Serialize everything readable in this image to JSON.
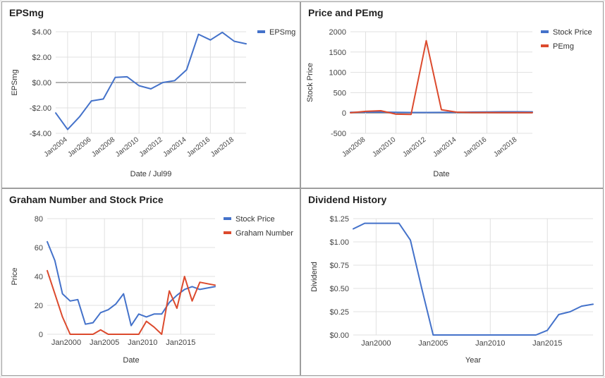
{
  "chart_data": [
    {
      "id": "eps",
      "type": "line",
      "title": "EPSmg",
      "xlabel": "Date / Jul99",
      "ylabel": "EPSmg",
      "ylim": [
        -4,
        4
      ],
      "xlim": [
        2003,
        2019
      ],
      "yticks": [
        4,
        2,
        0,
        -2,
        -4
      ],
      "ytick_labels": [
        "$4.00",
        "$2.00",
        "$0.00",
        "-$2.00",
        "-$4.00"
      ],
      "xticks": [
        2004,
        2006,
        2008,
        2010,
        2012,
        2014,
        2016,
        2018
      ],
      "xtick_labels": [
        "Jan2004",
        "Jan2006",
        "Jan2008",
        "Jan2010",
        "Jan2012",
        "Jan2014",
        "Jan2016",
        "Jan2018"
      ],
      "grid": true,
      "legend_position": "right",
      "series": [
        {
          "name": "EPSmg",
          "color": "#4472ca",
          "x": [
            2003,
            2004,
            2005,
            2006,
            2007,
            2008,
            2009,
            2010,
            2011,
            2012,
            2013,
            2014,
            2015,
            2016,
            2017,
            2018,
            2019
          ],
          "y": [
            -2.4,
            -3.7,
            -2.7,
            -1.45,
            -1.3,
            0.4,
            0.45,
            -0.25,
            -0.5,
            0.0,
            0.15,
            1.0,
            3.8,
            3.35,
            3.95,
            3.25,
            3.05
          ]
        }
      ]
    },
    {
      "id": "pe",
      "type": "line",
      "title": "Price and PEmg",
      "xlabel": "Date",
      "ylabel": "Stock Price",
      "ylim": [
        -500,
        2000
      ],
      "xlim": [
        2007,
        2019
      ],
      "yticks": [
        2000,
        1500,
        1000,
        500,
        0,
        -500
      ],
      "ytick_labels": [
        "2000",
        "1500",
        "1000",
        "500",
        "0",
        "-500"
      ],
      "xticks": [
        2008,
        2010,
        2012,
        2014,
        2016,
        2018
      ],
      "xtick_labels": [
        "Jan2008",
        "Jan2010",
        "Jan2012",
        "Jan2014",
        "Jan2016",
        "Jan2018"
      ],
      "grid": true,
      "legend_position": "right",
      "series": [
        {
          "name": "Stock Price",
          "color": "#4472ca",
          "x": [
            2007,
            2008,
            2009,
            2010,
            2011,
            2012,
            2013,
            2014,
            2015,
            2016,
            2017,
            2018,
            2019
          ],
          "y": [
            15,
            20,
            22,
            15,
            12,
            12,
            14,
            18,
            22,
            26,
            30,
            30,
            28
          ]
        },
        {
          "name": "PEmg",
          "color": "#dc4a2d",
          "x": [
            2007,
            2008,
            2009,
            2010,
            2011,
            2012,
            2013,
            2014,
            2015,
            2016,
            2017,
            2018,
            2019
          ],
          "y": [
            5,
            40,
            55,
            -30,
            -35,
            1780,
            80,
            20,
            10,
            10,
            8,
            9,
            8
          ]
        }
      ]
    },
    {
      "id": "graham",
      "type": "line",
      "title": "Graham Number and Stock Price",
      "xlabel": "Date",
      "ylabel": "Price",
      "ylim": [
        0,
        80
      ],
      "xlim": [
        1997.5,
        2019.5
      ],
      "yticks": [
        80,
        60,
        40,
        20,
        0
      ],
      "ytick_labels": [
        "80",
        "60",
        "40",
        "20",
        "0"
      ],
      "xticks": [
        2000,
        2005,
        2010,
        2015
      ],
      "xtick_labels": [
        "Jan2000",
        "Jan2005",
        "Jan2010",
        "Jan2015"
      ],
      "grid": true,
      "legend_position": "right",
      "series": [
        {
          "name": "Stock Price",
          "color": "#4472ca",
          "x": [
            1997.5,
            1998.5,
            1999.5,
            2000.5,
            2001.5,
            2002.5,
            2003.5,
            2004.5,
            2005.5,
            2006.5,
            2007.5,
            2008.5,
            2009.5,
            2010.5,
            2011.5,
            2012.5,
            2013.5,
            2014.5,
            2015.5,
            2016.5,
            2017.5,
            2018.5,
            2019.5
          ],
          "y": [
            64,
            51,
            28,
            23,
            24,
            7,
            8,
            15,
            17,
            21,
            28,
            6,
            14,
            12,
            14,
            14,
            22,
            27,
            31,
            33,
            31,
            32,
            33
          ]
        },
        {
          "name": "Graham Number",
          "color": "#dc4a2d",
          "x": [
            1997.5,
            1998.5,
            1999.5,
            2000.5,
            2001.5,
            2002.5,
            2003.5,
            2004.5,
            2005.5,
            2006.5,
            2007.5,
            2008.5,
            2009.5,
            2010.5,
            2011.5,
            2012.5,
            2013.5,
            2014.5,
            2015.5,
            2016.5,
            2017.5,
            2018.5,
            2019.5
          ],
          "y": [
            44,
            28,
            12,
            0,
            0,
            0,
            0,
            3,
            0,
            0,
            0,
            0,
            0,
            9,
            5,
            0,
            30,
            18,
            40,
            23,
            36,
            35,
            34
          ]
        }
      ]
    },
    {
      "id": "dividend",
      "type": "line",
      "title": "Dividend History",
      "xlabel": "Year",
      "ylabel": "Dividend",
      "ylim": [
        0,
        1.25
      ],
      "xlim": [
        1998,
        2019
      ],
      "yticks": [
        1.25,
        1.0,
        0.75,
        0.5,
        0.25,
        0.0
      ],
      "ytick_labels": [
        "$1.25",
        "$1.00",
        "$0.75",
        "$0.50",
        "$0.25",
        "$0.00"
      ],
      "xticks": [
        2000,
        2005,
        2010,
        2015
      ],
      "xtick_labels": [
        "Jan2000",
        "Jan2005",
        "Jan2010",
        "Jan2015"
      ],
      "grid": true,
      "series": [
        {
          "name": "",
          "color": "#4472ca",
          "x": [
            1998,
            1999,
            2000,
            2001,
            2002,
            2003,
            2004,
            2005,
            2006,
            2007,
            2008,
            2009,
            2010,
            2011,
            2012,
            2013,
            2014,
            2015,
            2016,
            2017,
            2018,
            2019
          ],
          "y": [
            1.14,
            1.2,
            1.2,
            1.2,
            1.2,
            1.02,
            0.5,
            0.0,
            0.0,
            0.0,
            0.0,
            0.0,
            0.0,
            0.0,
            0.0,
            0.0,
            0.0,
            0.05,
            0.22,
            0.25,
            0.31,
            0.33
          ]
        }
      ]
    }
  ]
}
